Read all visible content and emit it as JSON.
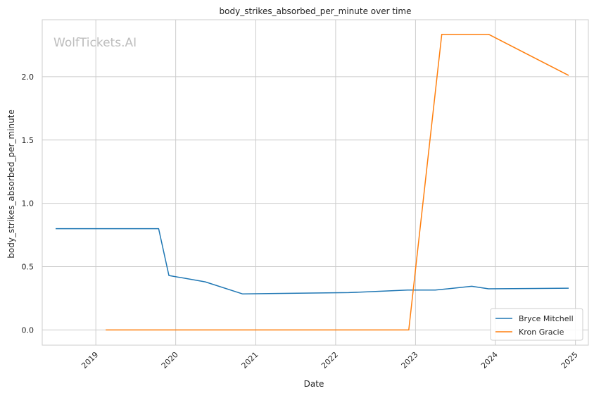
{
  "watermark": "WolfTickets.AI",
  "chart_data": {
    "type": "line",
    "title": "body_strikes_absorbed_per_minute over time",
    "xlabel": "Date",
    "ylabel": "body_strikes_absorbed_per_minute",
    "x_ticks": [
      "2019",
      "2020",
      "2021",
      "2022",
      "2023",
      "2024",
      "2025"
    ],
    "y_ticks": [
      "0.0",
      "0.5",
      "1.0",
      "1.5",
      "2.0"
    ],
    "xlim": [
      "2018-05-01",
      "2025-03-01"
    ],
    "ylim": [
      -0.12,
      2.45
    ],
    "grid": true,
    "legend_position": "lower-right",
    "series": [
      {
        "name": "Bryce Mitchell",
        "color": "#1f77b4",
        "points": [
          [
            "2018-07-01",
            0.8
          ],
          [
            "2019-10-15",
            0.8
          ],
          [
            "2019-12-01",
            0.43
          ],
          [
            "2020-05-15",
            0.38
          ],
          [
            "2020-11-01",
            0.285
          ],
          [
            "2022-03-01",
            0.295
          ],
          [
            "2022-11-26",
            0.315
          ],
          [
            "2023-04-01",
            0.315
          ],
          [
            "2023-09-15",
            0.345
          ],
          [
            "2023-12-01",
            0.325
          ],
          [
            "2024-12-01",
            0.33
          ]
        ]
      },
      {
        "name": "Kron Gracie",
        "color": "#ff7f0e",
        "points": [
          [
            "2019-02-15",
            0.0
          ],
          [
            "2022-12-01",
            0.0
          ],
          [
            "2023-05-01",
            2.335
          ],
          [
            "2023-12-01",
            2.335
          ],
          [
            "2024-12-01",
            2.01
          ]
        ]
      }
    ]
  }
}
